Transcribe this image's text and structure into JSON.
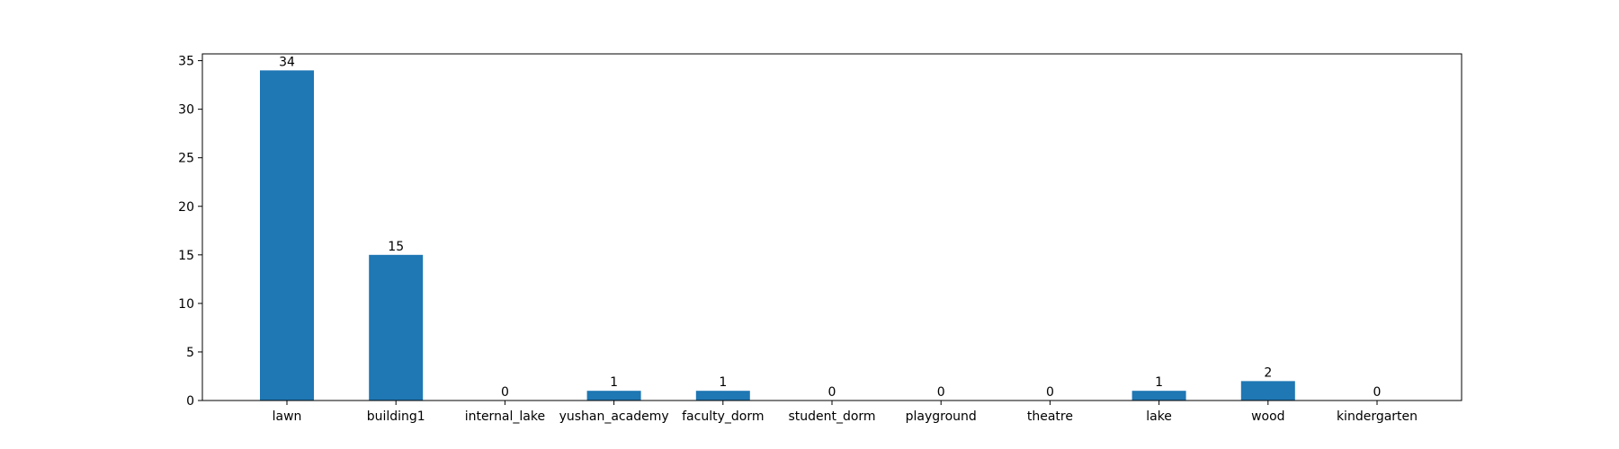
{
  "chart_data": {
    "type": "bar",
    "title": "",
    "xlabel": "",
    "ylabel": "",
    "categories": [
      "lawn",
      "building1",
      "internal_lake",
      "yushan_academy",
      "faculty_dorm",
      "student_dorm",
      "playground",
      "theatre",
      "lake",
      "wood",
      "kindergarten"
    ],
    "values": [
      34,
      15,
      0,
      1,
      1,
      0,
      0,
      0,
      1,
      2,
      0
    ],
    "value_labels": [
      "34",
      "15",
      "0",
      "1",
      "1",
      "0",
      "0",
      "0",
      "1",
      "2",
      "0"
    ],
    "ylim": [
      0,
      35.7
    ],
    "yticks": [
      0,
      5,
      10,
      15,
      20,
      25,
      30,
      35
    ],
    "ytick_labels": [
      "0",
      "5",
      "10",
      "15",
      "20",
      "25",
      "30",
      "35"
    ],
    "bar_color": "#1f77b4",
    "grid": false,
    "legend": "none"
  }
}
